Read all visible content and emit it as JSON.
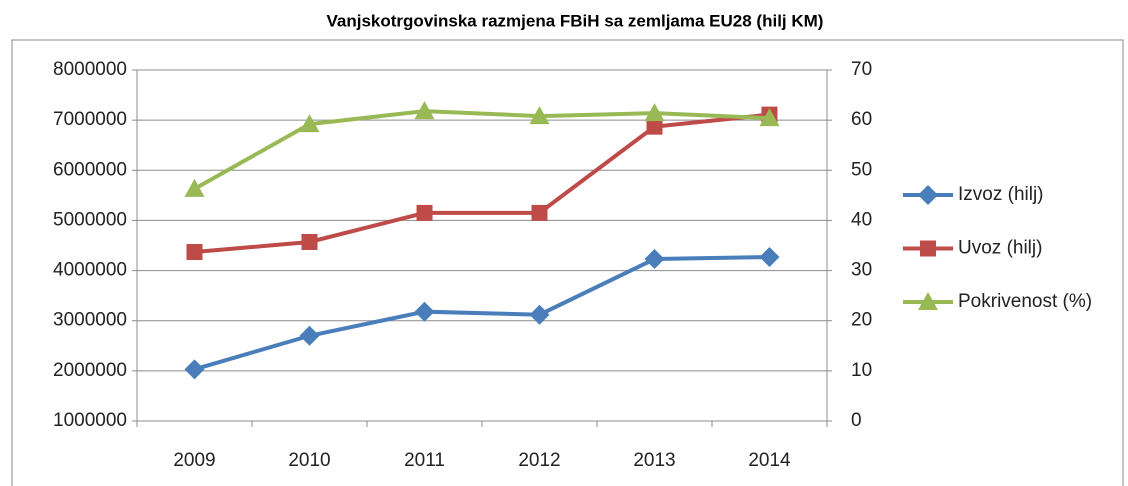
{
  "chart_data": {
    "type": "line",
    "title": "Vanjskotrgovinska razmjena FBiH sa zemljama EU28 (hilj KM)",
    "categories": [
      "2009",
      "2010",
      "2011",
      "2012",
      "2013",
      "2014"
    ],
    "series": [
      {
        "name": "Izvoz (hilj)",
        "color": "#4a7ebb",
        "marker": "diamond",
        "values": [
          2030000,
          2700000,
          3180000,
          3120000,
          4230000,
          4270000
        ]
      },
      {
        "name": "Uvoz (hilj)",
        "color": "#be4b48",
        "marker": "square",
        "values": [
          4370000,
          4570000,
          5150000,
          5150000,
          6870000,
          7110000
        ]
      },
      {
        "name": "Pokrivenost (%)",
        "color": "#98b954",
        "marker": "triangle",
        "axis": "y2",
        "values": [
          46.3,
          59.2,
          61.8,
          60.8,
          61.4,
          60.4
        ]
      }
    ],
    "ylim": [
      1000000,
      8000000
    ],
    "yticks": [
      1000000,
      2000000,
      3000000,
      4000000,
      5000000,
      6000000,
      7000000,
      8000000
    ],
    "y2lim": [
      0,
      70
    ],
    "y2ticks": [
      0,
      10,
      20,
      30,
      40,
      50,
      60,
      70
    ],
    "grid": true,
    "legend": "right"
  }
}
